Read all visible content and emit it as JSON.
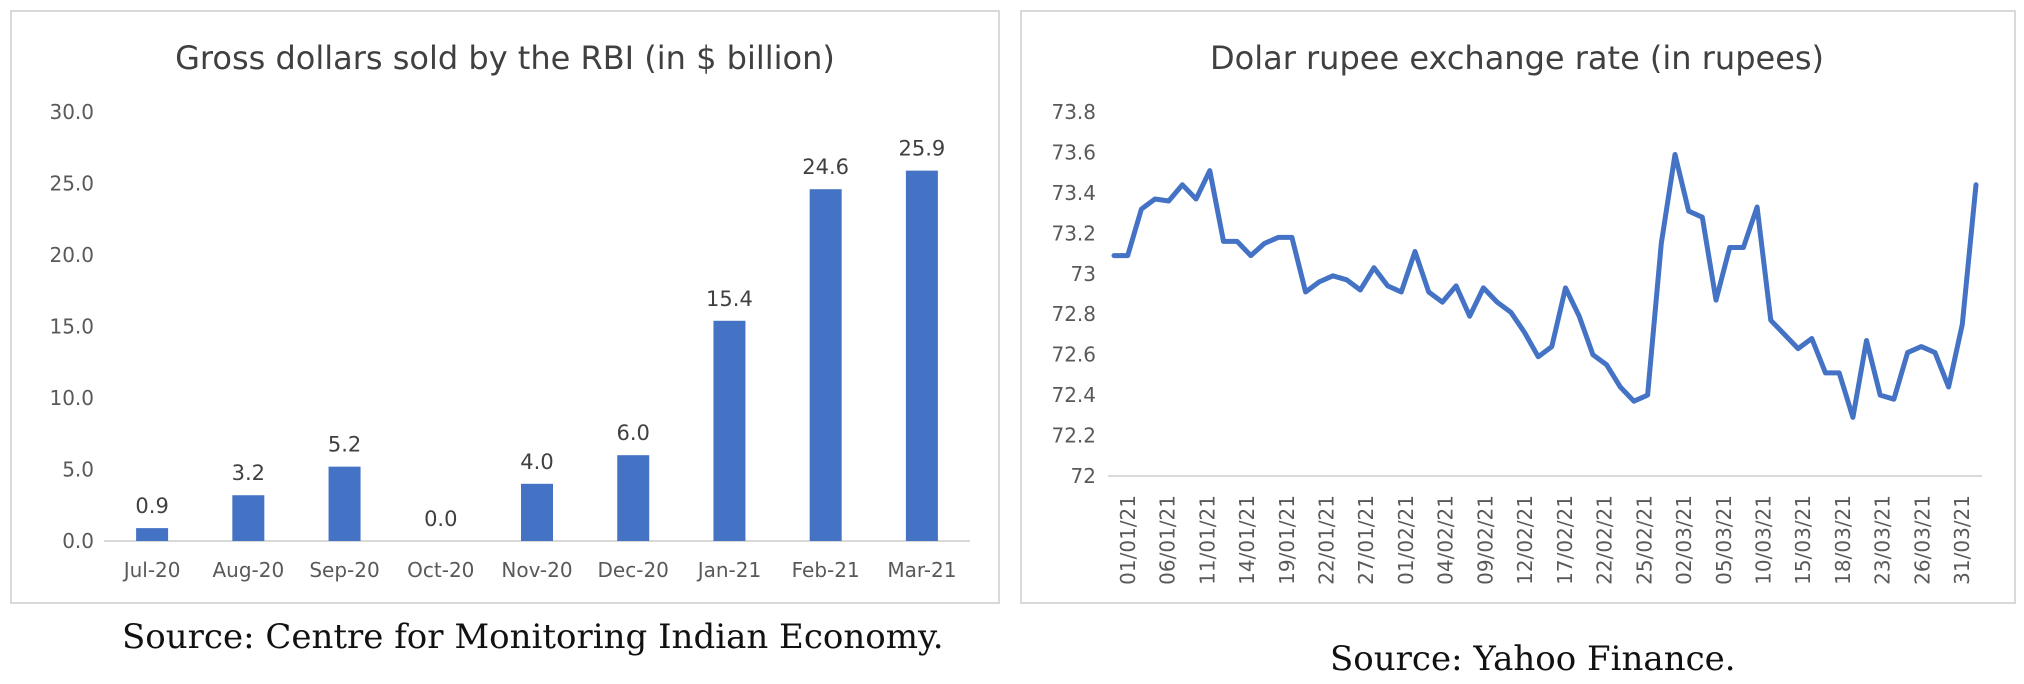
{
  "charts": {
    "left_source": "Source: Centre for Monitoring Indian Economy.",
    "right_source": "Source: Yahoo Finance."
  },
  "colors": {
    "series": "#4472C4",
    "grid": "#d9d9d9",
    "text": "#595959",
    "title": "#404040"
  },
  "chart_data": [
    {
      "type": "bar",
      "title": "Gross dollars sold by the RBI (in $ billion)",
      "xlabel": "",
      "ylabel": "",
      "categories": [
        "Jul-20",
        "Aug-20",
        "Sep-20",
        "Oct-20",
        "Nov-20",
        "Dec-20",
        "Jan-21",
        "Feb-21",
        "Mar-21"
      ],
      "values": [
        0.9,
        3.2,
        5.2,
        0.0,
        4.0,
        6.0,
        15.4,
        24.6,
        25.9
      ],
      "data_labels": [
        "0.9",
        "3.2",
        "5.2",
        "0.0",
        "4.0",
        "6.0",
        "15.4",
        "24.6",
        "25.9"
      ],
      "ylim": [
        0,
        30
      ],
      "yticks": [
        "0.0",
        "5.0",
        "10.0",
        "15.0",
        "20.0",
        "25.0",
        "30.0"
      ],
      "grid": false,
      "legend": "none"
    },
    {
      "type": "line",
      "title": "Dolar rupee exchange rate (in rupees)",
      "xlabel": "",
      "ylabel": "",
      "ylim": [
        72,
        73.8
      ],
      "yticks": [
        "72",
        "72.2",
        "72.4",
        "72.6",
        "72.8",
        "73",
        "73.2",
        "73.4",
        "73.6",
        "73.8"
      ],
      "xtick_labels": [
        "01/01/21",
        "06/01/21",
        "11/01/21",
        "14/01/21",
        "19/01/21",
        "22/01/21",
        "27/01/21",
        "01/02/21",
        "04/02/21",
        "09/02/21",
        "12/02/21",
        "17/02/21",
        "22/02/21",
        "25/02/21",
        "02/03/21",
        "05/03/21",
        "10/03/21",
        "15/03/21",
        "18/03/21",
        "23/03/21",
        "26/03/21",
        "31/03/21"
      ],
      "values": [
        73.09,
        73.09,
        73.32,
        73.37,
        73.36,
        73.44,
        73.37,
        73.51,
        73.16,
        73.16,
        73.09,
        73.15,
        73.18,
        73.18,
        72.91,
        72.96,
        72.99,
        72.97,
        72.92,
        73.03,
        72.94,
        72.91,
        73.11,
        72.91,
        72.86,
        72.94,
        72.79,
        72.93,
        72.86,
        72.81,
        72.71,
        72.59,
        72.64,
        72.93,
        72.79,
        72.6,
        72.55,
        72.44,
        72.37,
        72.4,
        73.15,
        73.59,
        73.31,
        73.28,
        72.87,
        73.13,
        73.13,
        73.33,
        72.77,
        72.7,
        72.63,
        72.68,
        72.51,
        72.51,
        72.29,
        72.67,
        72.4,
        72.38,
        72.61,
        72.64,
        72.61,
        72.44,
        72.75,
        73.44
      ],
      "grid": false,
      "legend": "none"
    }
  ]
}
